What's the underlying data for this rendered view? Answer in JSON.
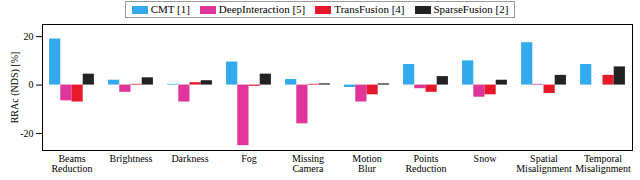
{
  "chart_data": {
    "type": "bar",
    "y_label": "RRAc (NDS) [%]",
    "categories": [
      "Beams Reduction",
      "Brightness",
      "Darkness",
      "Fog",
      "Missing Camera",
      "Motion Blur",
      "Points Reduction",
      "Snow",
      "Spatial Misalignment",
      "Temporal Misalignment"
    ],
    "series": [
      {
        "name": "CMT [1]",
        "color": "#33aaee",
        "values": [
          19,
          2,
          0.3,
          9.5,
          2.3,
          -1,
          8.5,
          10,
          17.5,
          8.5
        ]
      },
      {
        "name": "DeepInteraction [5]",
        "color": "#e0359a",
        "values": [
          -6.5,
          -3,
          -7,
          -25,
          -16,
          -7,
          -1.5,
          -5,
          0.3,
          0
        ]
      },
      {
        "name": "TransFusion [4]",
        "color": "#e8182c",
        "values": [
          -7,
          0.3,
          1,
          -0.5,
          0.3,
          -4,
          -3,
          -4,
          -3.5,
          4
        ]
      },
      {
        "name": "SparseFusion [2]",
        "color": "#222222",
        "values": [
          4.5,
          3,
          1.8,
          4.5,
          0.5,
          0.5,
          3.5,
          2,
          4,
          7.5
        ]
      }
    ],
    "ylim": [
      -27,
      25
    ],
    "yticks": [
      -20,
      0,
      20
    ],
    "legend": "top"
  }
}
